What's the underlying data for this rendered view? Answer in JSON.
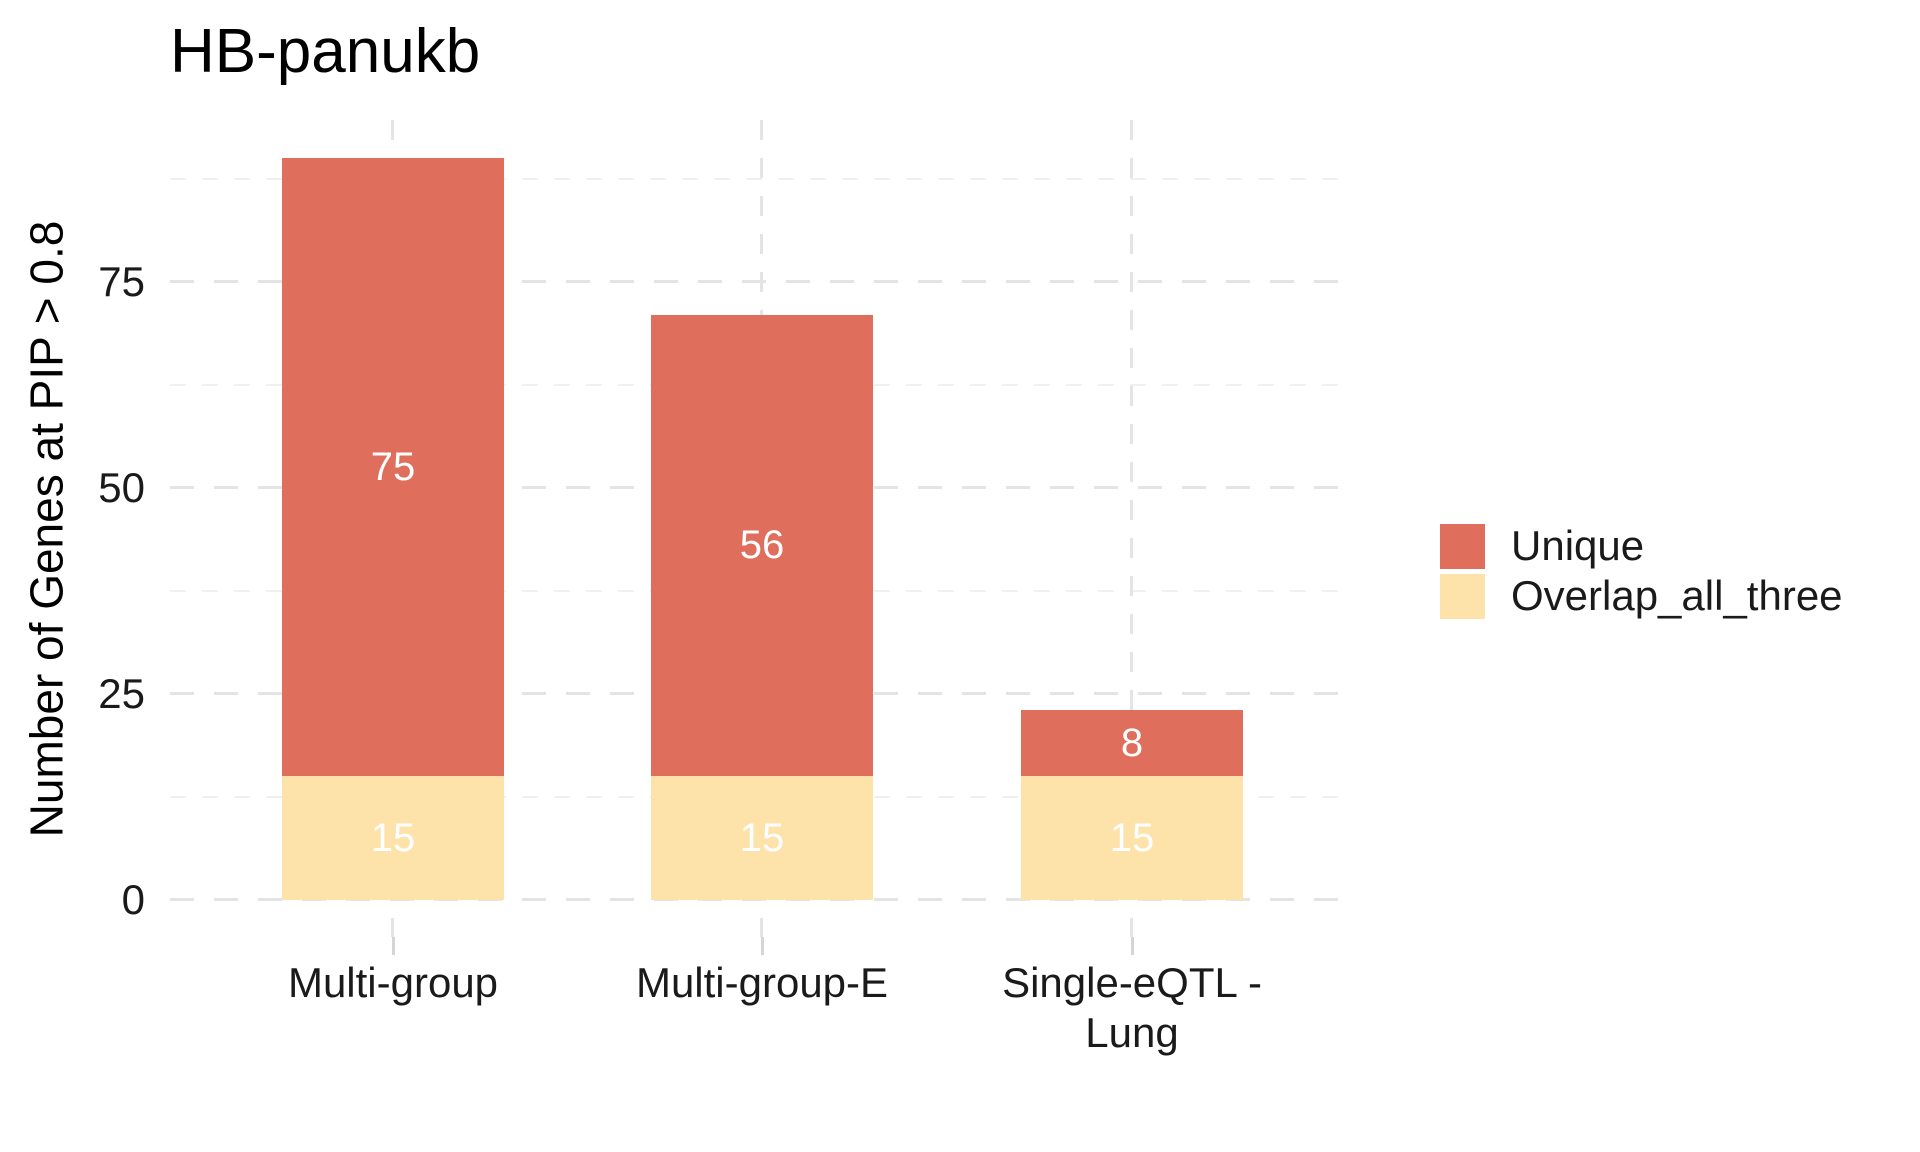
{
  "title": "HB-panukb",
  "colors": {
    "unique": "#E06E5C",
    "overlap_all_three": "#FDE2A9",
    "grid_major": "#E4E4E4",
    "grid_minor": "#F0F0F0",
    "axis_tick": "#D5D5D5",
    "value_label_text": "#FFFFFF",
    "axis_text": "#1A1A1A",
    "title_text": "#000000"
  },
  "chart_data": {
    "type": "bar",
    "stacked": true,
    "title": "HB-panukb",
    "xlabel": "",
    "ylabel": "Number of Genes at PIP > 0.8",
    "categories": [
      "Multi-group",
      "Multi-group-E",
      "Single-eQTL - Lung"
    ],
    "category_label_lines": [
      [
        "Multi-group"
      ],
      [
        "Multi-group-E"
      ],
      [
        "Single-eQTL -",
        "Lung"
      ]
    ],
    "series": [
      {
        "name": "Unique",
        "color": "#E06E5C",
        "values": [
          75,
          56,
          8
        ]
      },
      {
        "name": "Overlap_all_three",
        "color": "#FDE2A9",
        "values": [
          15,
          15,
          15
        ]
      }
    ],
    "stack_order_bottom_to_top": [
      "Overlap_all_three",
      "Unique"
    ],
    "bar_totals": [
      90,
      71,
      23
    ],
    "value_labels_shown": true,
    "ylim": [
      0,
      90
    ],
    "yticks": [
      0,
      25,
      50,
      75
    ],
    "yticks_minor": [
      12.5,
      37.5,
      62.5,
      87.5
    ],
    "grid_style": "dashed",
    "legend_position": "right",
    "legend_entries": [
      "Unique",
      "Overlap_all_three"
    ]
  }
}
